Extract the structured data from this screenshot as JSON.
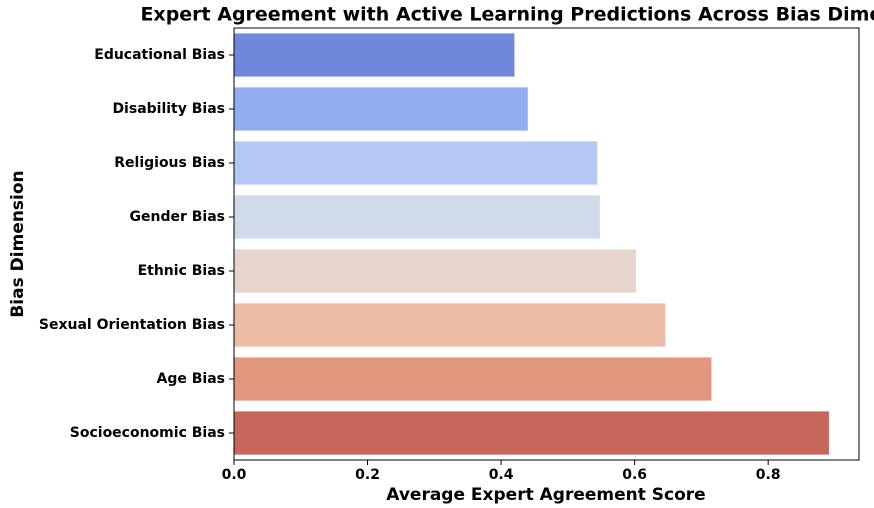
{
  "chart_data": {
    "type": "barh",
    "title": "Expert Agreement with Active Learning Predictions Across Bias Dimensions",
    "xlabel": "Average Expert Agreement Score",
    "ylabel": "Bias Dimension",
    "categories": [
      "Educational Bias",
      "Disability Bias",
      "Religious Bias",
      "Gender Bias",
      "Ethnic Bias",
      "Sexual Orientation Bias",
      "Age Bias",
      "Socioeconomic Bias"
    ],
    "values": [
      0.42,
      0.44,
      0.544,
      0.548,
      0.602,
      0.646,
      0.715,
      0.891
    ],
    "colors": [
      "#6f88db",
      "#8fadf0",
      "#b3c9f4",
      "#d0dae9",
      "#e5d5cb",
      "#eebba6",
      "#e2967e",
      "#c6675a"
    ],
    "xlim": [
      0,
      0.936
    ],
    "xticks": [
      {
        "value": 0,
        "label": "0.0"
      },
      0.2,
      0.4,
      0.6,
      0.8
    ],
    "grid": false
  }
}
